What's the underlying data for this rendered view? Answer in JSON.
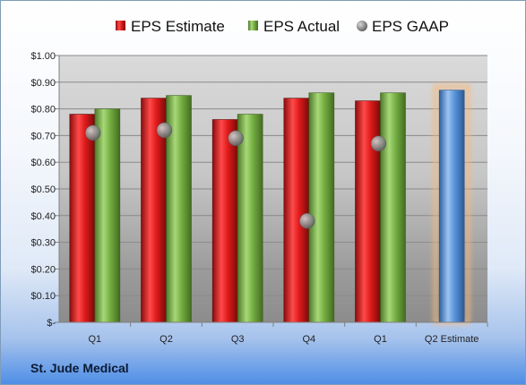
{
  "company": "St. Jude Medical",
  "colors": {
    "estimate": "#e01b1b",
    "actual": "#76b043",
    "gaap": "#8f8f8f",
    "projection": "#5b95db",
    "projection_glow": "#f7b97a"
  },
  "chart_data": {
    "type": "bar",
    "categories": [
      "Q1",
      "Q2",
      "Q3",
      "Q4",
      "Q1",
      "Q2 Estimate"
    ],
    "series": [
      {
        "name": "EPS Estimate",
        "marker": "bar",
        "values": [
          0.78,
          0.84,
          0.76,
          0.84,
          0.83,
          null
        ]
      },
      {
        "name": "EPS Actual",
        "marker": "bar",
        "values": [
          0.8,
          0.85,
          0.78,
          0.86,
          0.86,
          null
        ]
      },
      {
        "name": "EPS GAAP",
        "marker": "circle",
        "values": [
          0.71,
          0.72,
          0.69,
          0.38,
          0.67,
          null
        ]
      }
    ],
    "projection": {
      "category": "Q2 Estimate",
      "value": 0.87
    },
    "y_ticks": [
      "$-",
      "$0.10",
      "$0.20",
      "$0.30",
      "$0.40",
      "$0.50",
      "$0.60",
      "$0.70",
      "$0.80",
      "$0.90",
      "$1.00"
    ],
    "ylim": [
      0,
      1.0
    ],
    "grid": true,
    "legend": "top"
  }
}
